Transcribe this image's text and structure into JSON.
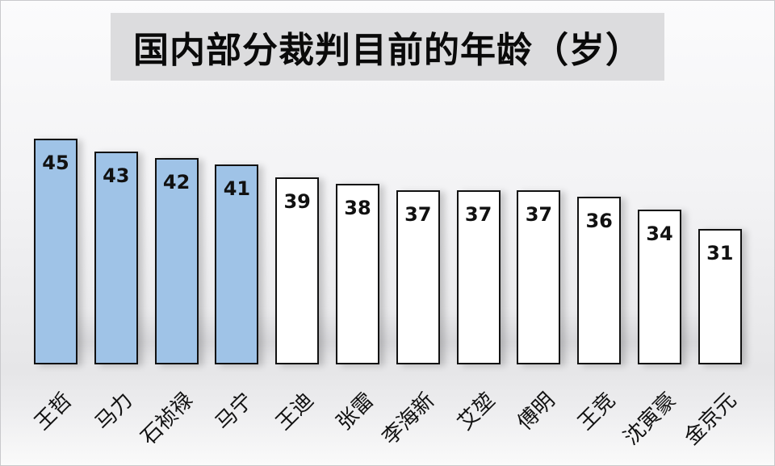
{
  "chart_data": {
    "type": "bar",
    "title": "国内部分裁判目前的年龄（岁）",
    "xlabel": "",
    "ylabel": "",
    "categories": [
      "王哲",
      "马力",
      "石祯禄",
      "马宁",
      "王迪",
      "张雷",
      "李海新",
      "艾堃",
      "傅明",
      "王竞",
      "沈寅豪",
      "金京元"
    ],
    "values": [
      45,
      43,
      42,
      41,
      39,
      38,
      37,
      37,
      37,
      36,
      34,
      31
    ],
    "ylim": [
      10,
      48
    ],
    "grid": false,
    "legend": null,
    "data_labels": true,
    "highlight_count": 4,
    "colors": {
      "highlight": "#9fc3e7",
      "normal": "#ffffff",
      "border": "#111111"
    }
  },
  "title": "国内部分裁判目前的年龄（岁）"
}
